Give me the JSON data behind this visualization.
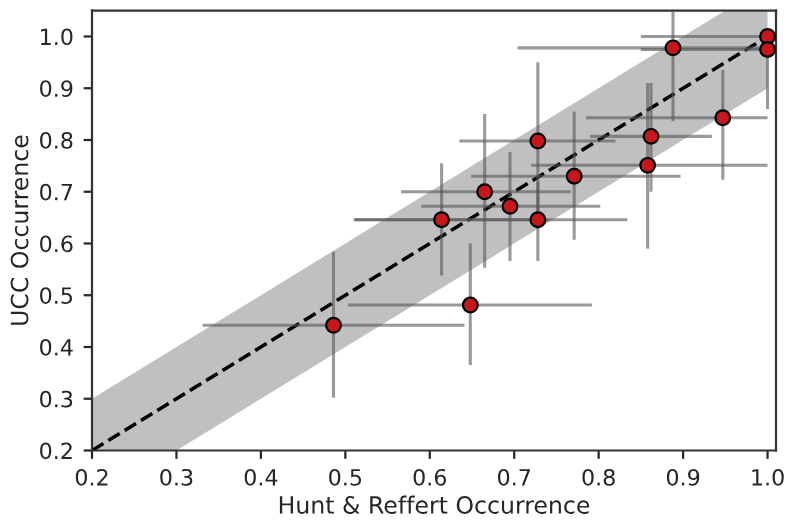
{
  "chart_data": {
    "type": "scatter",
    "xlabel": "Hunt & Reffert Occurrence",
    "ylabel": "UCC Occurrence",
    "xlim": [
      0.2,
      1.01
    ],
    "ylim": [
      0.2,
      1.05
    ],
    "xticks": [
      {
        "value": 0.2,
        "label": "0.2"
      },
      {
        "value": 0.3,
        "label": "0.3"
      },
      {
        "value": 0.4,
        "label": "0.4"
      },
      {
        "value": 0.5,
        "label": "0.5"
      },
      {
        "value": 0.6,
        "label": "0.6"
      },
      {
        "value": 0.7,
        "label": "0.7"
      },
      {
        "value": 0.8,
        "label": "0.8"
      },
      {
        "value": 0.9,
        "label": "0.9"
      },
      {
        "value": 1.0,
        "label": "1.0"
      }
    ],
    "yticks": [
      {
        "value": 0.2,
        "label": "0.2"
      },
      {
        "value": 0.3,
        "label": "0.3"
      },
      {
        "value": 0.4,
        "label": "0.4"
      },
      {
        "value": 0.5,
        "label": "0.5"
      },
      {
        "value": 0.6,
        "label": "0.6"
      },
      {
        "value": 0.7,
        "label": "0.7"
      },
      {
        "value": 0.8,
        "label": "0.8"
      },
      {
        "value": 0.9,
        "label": "0.9"
      },
      {
        "value": 1.0,
        "label": "1.0"
      }
    ],
    "grid": false,
    "series": [
      {
        "type": "line",
        "color": "#000000",
        "line_style": "dashed",
        "x": [
          0.2,
          0.3,
          0.95,
          1.0
        ],
        "values": [
          0.2,
          0.3,
          0.95,
          1.0
        ],
        "lower": [
          0.2,
          0.2,
          0.85,
          0.9
        ],
        "upper": [
          0.3,
          0.4,
          1.05,
          1.05
        ]
      },
      {
        "marker": "circle",
        "color": "#c8161d",
        "x": [
          1.0,
          1.0,
          0.888,
          0.947,
          0.862,
          0.858,
          0.728,
          0.771,
          0.665,
          0.695,
          0.614,
          0.728,
          0.648,
          0.486
        ],
        "values": [
          1.0,
          0.975,
          0.978,
          0.843,
          0.807,
          0.751,
          0.798,
          0.73,
          0.7,
          0.672,
          0.646,
          0.646,
          0.481,
          0.442
        ],
        "xerrors": [
          [
            0.85,
            1.01
          ],
          [
            0.85,
            1.01
          ],
          [
            0.704,
            1.0
          ],
          [
            0.785,
            1.0
          ],
          [
            0.79,
            0.934
          ],
          [
            0.72,
            1.0
          ],
          [
            0.635,
            0.82
          ],
          [
            0.649,
            0.897
          ],
          [
            0.566,
            0.767
          ],
          [
            0.59,
            0.802
          ],
          [
            0.51,
            0.74
          ],
          [
            0.511,
            0.834
          ],
          [
            0.503,
            0.792
          ],
          [
            0.331,
            0.641
          ]
        ],
        "errors": [
          null,
          [
            0.86,
            1.0
          ],
          [
            0.836,
            1.05
          ],
          [
            0.723,
            0.935
          ],
          [
            0.7,
            0.91
          ],
          [
            0.59,
            0.91
          ],
          [
            0.646,
            0.95
          ],
          [
            0.607,
            0.855
          ],
          [
            0.553,
            0.85
          ],
          [
            0.566,
            0.777
          ],
          [
            0.538,
            0.755
          ],
          [
            0.566,
            0.72
          ],
          [
            0.365,
            0.6
          ],
          [
            0.302,
            0.584
          ]
        ]
      }
    ]
  }
}
